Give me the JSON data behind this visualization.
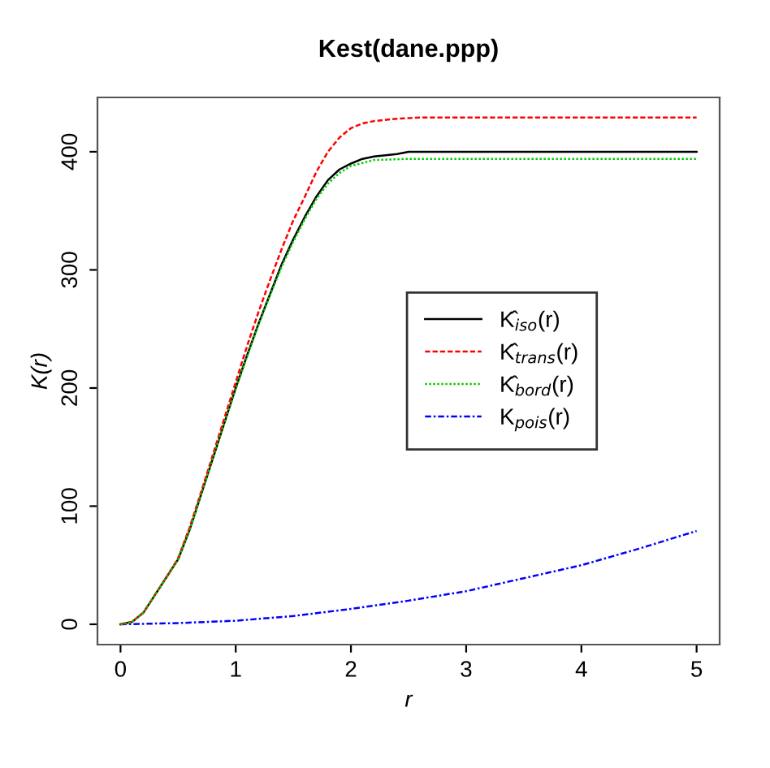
{
  "chart_data": {
    "type": "line",
    "title": "Kest(dane.ppp)",
    "xlabel": "r",
    "ylabel": "K(r)",
    "xlim": [
      -0.2,
      5.2
    ],
    "ylim": [
      -17.2,
      446
    ],
    "xticks": [
      0,
      1,
      2,
      3,
      4,
      5
    ],
    "yticks": [
      0,
      100,
      200,
      300,
      400
    ],
    "grid": false,
    "legend": "center right",
    "marker": "none",
    "series": [
      {
        "name": "K̂$_{iso}$(r)",
        "color": "#000000",
        "line_style": "solid",
        "x": [
          0,
          0.1,
          0.2,
          0.3,
          0.4,
          0.5,
          0.6,
          0.7,
          0.8,
          0.9,
          1.0,
          1.1,
          1.2,
          1.3,
          1.4,
          1.5,
          1.6,
          1.7,
          1.8,
          1.9,
          2.0,
          2.1,
          2.2,
          2.3,
          2.4,
          2.5,
          5
        ],
        "values": [
          0,
          2,
          10,
          25,
          40,
          55,
          80,
          110,
          140,
          170,
          200,
          228,
          255,
          280,
          305,
          326,
          345,
          362,
          376,
          385,
          390,
          394,
          396,
          397,
          398,
          400,
          400
        ]
      },
      {
        "name": "K̂$_{trans}$(r)",
        "color": "#ff0000",
        "line_style": "dashed",
        "x": [
          0,
          0.1,
          0.2,
          0.3,
          0.4,
          0.5,
          0.6,
          0.7,
          0.8,
          0.9,
          1.0,
          1.1,
          1.2,
          1.3,
          1.4,
          1.5,
          1.6,
          1.7,
          1.8,
          1.9,
          2.0,
          2.1,
          2.2,
          2.4,
          2.6,
          5
        ],
        "values": [
          0,
          2,
          10,
          25,
          40,
          56,
          82,
          112,
          143,
          174,
          205,
          236,
          265,
          292,
          318,
          342,
          362,
          383,
          400,
          412,
          420,
          424,
          426,
          428,
          429,
          429
        ]
      },
      {
        "name": "K̂$_{bord}$(r)",
        "color": "#00cc00",
        "line_style": "dotted",
        "x": [
          0,
          0.1,
          0.2,
          0.3,
          0.4,
          0.5,
          0.6,
          0.7,
          0.8,
          0.9,
          1.0,
          1.1,
          1.2,
          1.3,
          1.4,
          1.5,
          1.6,
          1.7,
          1.8,
          1.9,
          2.0,
          2.2,
          2.5,
          5
        ],
        "values": [
          0,
          2,
          10,
          25,
          40,
          55,
          80,
          110,
          140,
          170,
          199,
          227,
          254,
          279,
          303,
          324,
          343,
          360,
          373,
          382,
          388,
          393,
          394,
          394
        ]
      },
      {
        "name": "K$_{pois}$(r)",
        "color": "#0000ff",
        "line_style": "dashdot",
        "x": [
          0,
          0.5,
          1,
          1.5,
          2,
          2.5,
          3,
          3.5,
          4,
          4.5,
          5
        ],
        "values": [
          0,
          1,
          3,
          7,
          13,
          20,
          28,
          39,
          50,
          64,
          79
        ]
      }
    ]
  }
}
